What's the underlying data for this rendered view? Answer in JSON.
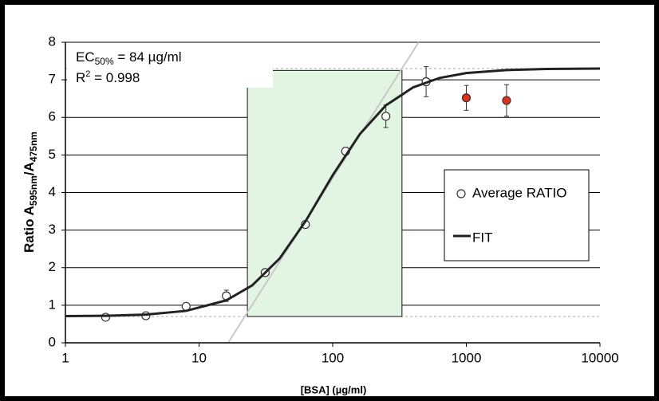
{
  "chart_data": {
    "type": "scatter",
    "x_label": "[BSA] (µg/ml)",
    "y_label": {
      "main": "Ratio A",
      "sub1": "595nm",
      "mid": "/A",
      "sub2": "475nm"
    },
    "annotations": [
      {
        "main": "EC",
        "sub": "50%",
        "rest": " = 84 µg/ml"
      },
      {
        "main": "R",
        "sup": "2",
        "rest": " = 0.998"
      }
    ],
    "log_x": true,
    "grid": true,
    "legend_position": "center right",
    "xlim": [
      1,
      10000
    ],
    "xticks": [
      1,
      10,
      100,
      1000,
      10000
    ],
    "ylim": [
      0,
      8
    ],
    "yticks": [
      0,
      1,
      2,
      3,
      4,
      5,
      6,
      7,
      8
    ],
    "series": [
      {
        "name": "Average RATIO",
        "kind": "markers",
        "color": "#ffffff",
        "x": [
          2,
          4,
          8,
          16,
          31.25,
          62.5,
          125,
          250,
          500,
          1000,
          2000
        ],
        "values": [
          0.68,
          0.72,
          0.97,
          1.25,
          1.87,
          3.15,
          5.1,
          6.03,
          6.95,
          6.52,
          6.45
        ],
        "errors": [
          0.04,
          0.04,
          0.06,
          0.15,
          0.08,
          0.08,
          0.1,
          0.3,
          0.4,
          0.33,
          0.42
        ],
        "colors": [
          "#ffffff",
          "#ffffff",
          "#ffffff",
          "#ffffff",
          "#ffffff",
          "#ffffff",
          "#ffffff",
          "#ffffff",
          "#ffffff",
          "#e0301e",
          "#e0301e"
        ]
      },
      {
        "name": "FIT",
        "kind": "line",
        "color": "#222222",
        "x": [
          1,
          2,
          4,
          8,
          16,
          25,
          40,
          63,
          100,
          160,
          250,
          400,
          630,
          1000,
          2000,
          4000,
          10000
        ],
        "values": [
          0.71,
          0.72,
          0.75,
          0.85,
          1.13,
          1.53,
          2.24,
          3.25,
          4.46,
          5.56,
          6.32,
          6.8,
          7.05,
          7.18,
          7.26,
          7.29,
          7.3
        ]
      }
    ],
    "tangent_line": {
      "x": [
        16.5,
        440
      ],
      "values": [
        0,
        8
      ],
      "color": "#c8c8c8"
    },
    "reference_lines": [
      0.7,
      7.3
    ],
    "highlight_range": {
      "x": [
        23,
        330
      ],
      "y": [
        0.7,
        7.25
      ],
      "color": "#e2f4e2"
    }
  }
}
